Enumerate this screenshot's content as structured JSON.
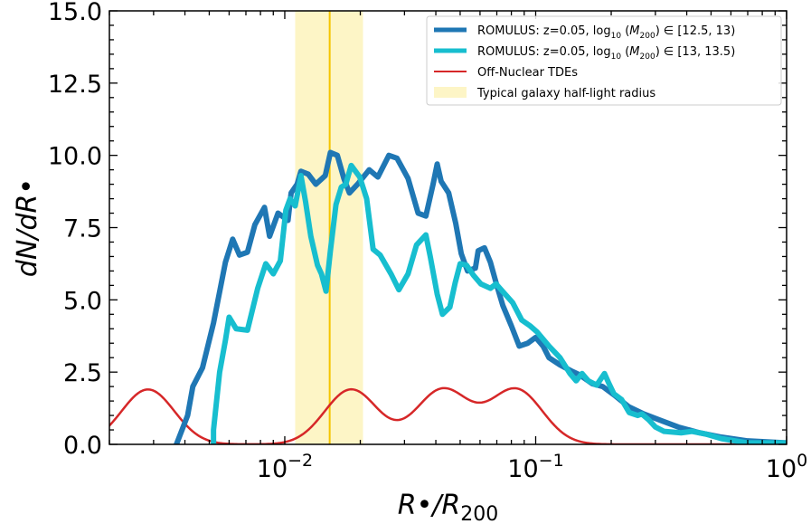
{
  "chart_data": {
    "type": "line",
    "x_scale": "log",
    "xlim": [
      0.002,
      1.0
    ],
    "ylim": [
      0.0,
      15.0
    ],
    "xlabel": "R•/R200",
    "ylabel": "dN/dR•",
    "x_ticks": [
      {
        "value": 0.01,
        "base": "10",
        "exponent": "−2"
      },
      {
        "value": 0.1,
        "base": "10",
        "exponent": "−1"
      },
      {
        "value": 1.0,
        "base": "10",
        "exponent": "0"
      }
    ],
    "y_ticks": [
      {
        "value": 0.0,
        "label": "0.0"
      },
      {
        "value": 2.5,
        "label": "2.5"
      },
      {
        "value": 5.0,
        "label": "5.0"
      },
      {
        "value": 7.5,
        "label": "7.5"
      },
      {
        "value": 10.0,
        "label": "10.0"
      },
      {
        "value": 12.5,
        "label": "12.5"
      },
      {
        "value": 15.0,
        "label": "15.0"
      }
    ],
    "band": {
      "name": "Typical galaxy half-light radius",
      "x_range": [
        0.011,
        0.0205
      ],
      "center": 0.0151,
      "color": "#fdf5c6",
      "line_color": "#f5c400"
    },
    "series": [
      {
        "name": "ROMULUS: z=0.05, log10(M200) ∈ [12.5, 13)",
        "color": "#1f77b4",
        "width": 6,
        "points": [
          [
            0.0037,
            0.0
          ],
          [
            0.0041,
            1.0
          ],
          [
            0.0043,
            2.0
          ],
          [
            0.0047,
            2.65
          ],
          [
            0.0052,
            4.2
          ],
          [
            0.0058,
            6.3
          ],
          [
            0.0062,
            7.1
          ],
          [
            0.0066,
            6.55
          ],
          [
            0.0071,
            6.65
          ],
          [
            0.0076,
            7.6
          ],
          [
            0.0083,
            8.2
          ],
          [
            0.0087,
            7.2
          ],
          [
            0.0094,
            8.0
          ],
          [
            0.0103,
            7.75
          ],
          [
            0.0106,
            8.7
          ],
          [
            0.0112,
            9.0
          ],
          [
            0.0116,
            9.45
          ],
          [
            0.0124,
            9.35
          ],
          [
            0.0133,
            9.0
          ],
          [
            0.0145,
            9.3
          ],
          [
            0.0152,
            10.1
          ],
          [
            0.0162,
            10.0
          ],
          [
            0.0172,
            9.2
          ],
          [
            0.0181,
            8.7
          ],
          [
            0.0195,
            9.0
          ],
          [
            0.0217,
            9.5
          ],
          [
            0.0235,
            9.25
          ],
          [
            0.026,
            10.0
          ],
          [
            0.028,
            9.9
          ],
          [
            0.031,
            9.2
          ],
          [
            0.034,
            8.0
          ],
          [
            0.0365,
            7.9
          ],
          [
            0.039,
            9.0
          ],
          [
            0.0405,
            9.7
          ],
          [
            0.042,
            9.1
          ],
          [
            0.045,
            8.7
          ],
          [
            0.048,
            7.65
          ],
          [
            0.0505,
            6.6
          ],
          [
            0.0535,
            6.0
          ],
          [
            0.0575,
            6.1
          ],
          [
            0.059,
            6.7
          ],
          [
            0.0625,
            6.8
          ],
          [
            0.066,
            6.3
          ],
          [
            0.07,
            5.5
          ],
          [
            0.074,
            4.8
          ],
          [
            0.08,
            4.1
          ],
          [
            0.086,
            3.4
          ],
          [
            0.093,
            3.5
          ],
          [
            0.1,
            3.7
          ],
          [
            0.107,
            3.4
          ],
          [
            0.113,
            3.0
          ],
          [
            0.125,
            2.75
          ],
          [
            0.138,
            2.55
          ],
          [
            0.15,
            2.4
          ],
          [
            0.168,
            2.1
          ],
          [
            0.185,
            2.0
          ],
          [
            0.206,
            1.7
          ],
          [
            0.235,
            1.3
          ],
          [
            0.27,
            1.05
          ],
          [
            0.31,
            0.85
          ],
          [
            0.37,
            0.6
          ],
          [
            0.45,
            0.4
          ],
          [
            0.55,
            0.25
          ],
          [
            0.7,
            0.12
          ],
          [
            1.0,
            0.05
          ]
        ]
      },
      {
        "name": "ROMULUS: z=0.05, log10(M200) ∈ [13, 13.5)",
        "color": "#17becf",
        "width": 6,
        "points": [
          [
            0.0052,
            0.0
          ],
          [
            0.0052,
            0.5
          ],
          [
            0.0055,
            2.5
          ],
          [
            0.0058,
            3.6
          ],
          [
            0.006,
            4.4
          ],
          [
            0.0064,
            4.0
          ],
          [
            0.0071,
            3.95
          ],
          [
            0.0078,
            5.4
          ],
          [
            0.0084,
            6.25
          ],
          [
            0.009,
            5.9
          ],
          [
            0.0096,
            6.35
          ],
          [
            0.0101,
            8.1
          ],
          [
            0.0105,
            8.5
          ],
          [
            0.011,
            8.25
          ],
          [
            0.0116,
            9.3
          ],
          [
            0.0121,
            8.4
          ],
          [
            0.0127,
            7.2
          ],
          [
            0.0135,
            6.2
          ],
          [
            0.014,
            5.9
          ],
          [
            0.0146,
            5.3
          ],
          [
            0.0152,
            6.7
          ],
          [
            0.016,
            8.3
          ],
          [
            0.0168,
            8.9
          ],
          [
            0.0175,
            9.0
          ],
          [
            0.0184,
            9.65
          ],
          [
            0.0199,
            9.25
          ],
          [
            0.0212,
            8.5
          ],
          [
            0.0225,
            6.75
          ],
          [
            0.024,
            6.55
          ],
          [
            0.0265,
            5.9
          ],
          [
            0.0285,
            5.35
          ],
          [
            0.031,
            5.9
          ],
          [
            0.0335,
            6.9
          ],
          [
            0.0365,
            7.25
          ],
          [
            0.038,
            6.5
          ],
          [
            0.0405,
            5.2
          ],
          [
            0.0425,
            4.5
          ],
          [
            0.0455,
            4.75
          ],
          [
            0.0478,
            5.6
          ],
          [
            0.05,
            6.25
          ],
          [
            0.053,
            6.2
          ],
          [
            0.0565,
            5.85
          ],
          [
            0.0605,
            5.55
          ],
          [
            0.066,
            5.4
          ],
          [
            0.0695,
            5.55
          ],
          [
            0.0755,
            5.2
          ],
          [
            0.081,
            4.9
          ],
          [
            0.088,
            4.3
          ],
          [
            0.095,
            4.1
          ],
          [
            0.101,
            3.9
          ],
          [
            0.113,
            3.4
          ],
          [
            0.125,
            3.0
          ],
          [
            0.137,
            2.45
          ],
          [
            0.145,
            2.2
          ],
          [
            0.153,
            2.45
          ],
          [
            0.162,
            2.2
          ],
          [
            0.175,
            2.05
          ],
          [
            0.188,
            2.45
          ],
          [
            0.196,
            2.1
          ],
          [
            0.205,
            1.75
          ],
          [
            0.22,
            1.55
          ],
          [
            0.236,
            1.1
          ],
          [
            0.255,
            1.0
          ],
          [
            0.265,
            1.05
          ],
          [
            0.282,
            0.85
          ],
          [
            0.3,
            0.6
          ],
          [
            0.325,
            0.45
          ],
          [
            0.38,
            0.4
          ],
          [
            0.42,
            0.45
          ],
          [
            0.48,
            0.35
          ],
          [
            0.55,
            0.2
          ],
          [
            0.7,
            0.05
          ],
          [
            1.0,
            0.05
          ]
        ]
      },
      {
        "name": "Off-Nuclear TDEs",
        "color": "#d62728",
        "width": 2.5,
        "peaks": [
          {
            "center": 0.00285,
            "amplitude": 1.9,
            "sigma_dex": 0.105
          },
          {
            "center": 0.0184,
            "amplitude": 1.9,
            "sigma_dex": 0.105
          },
          {
            "center": 0.0426,
            "amplitude": 1.9,
            "sigma_dex": 0.105
          },
          {
            "center": 0.0835,
            "amplitude": 1.9,
            "sigma_dex": 0.105
          }
        ]
      }
    ],
    "legend": {
      "position": "top-right",
      "entries": [
        {
          "kind": "line",
          "color": "#1f77b4",
          "width": 5,
          "prefix": "ROMULUS: z=0.05, log",
          "sub": "10",
          "mid": " (M",
          "sub2": "200",
          "suffix": ") ∈ [12.5, 13)"
        },
        {
          "kind": "line",
          "color": "#17becf",
          "width": 5,
          "prefix": "ROMULUS: z=0.05, log",
          "sub": "10",
          "mid": " (M",
          "sub2": "200",
          "suffix": ") ∈ [13, 13.5)"
        },
        {
          "kind": "line",
          "color": "#d62728",
          "width": 2,
          "text": "Off-Nuclear TDEs"
        },
        {
          "kind": "patch",
          "color": "#fdf5c6",
          "text": "Typical galaxy half-light radius"
        }
      ]
    }
  }
}
